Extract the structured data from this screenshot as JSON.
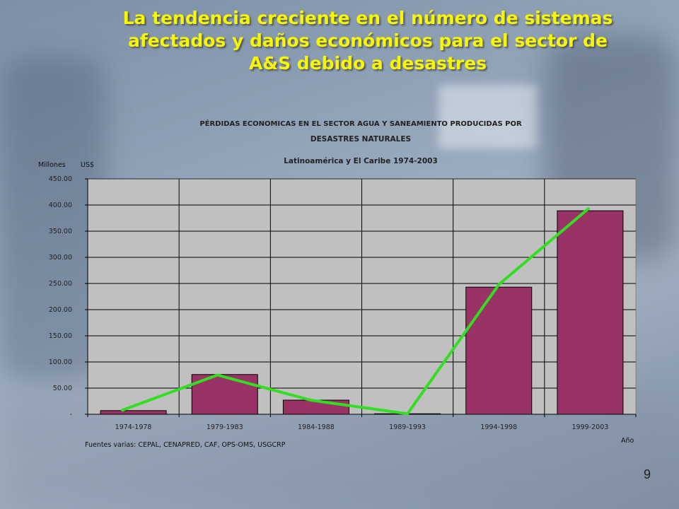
{
  "slide": {
    "title": "La tendencia creciente en el número de sistemas afectados y daños económicos para el sector de A&S debido a desastres",
    "page_number": "9"
  },
  "chart_data": {
    "type": "bar",
    "title_line1": "PÉRDIDAS ECONOMICAS EN EL SECTOR AGUA Y SANEAMIENTO PRODUCIDAS POR",
    "title_line2": "DESASTRES NATURALES",
    "subtitle": "Latinoamérica y El Caribe 1974-2003",
    "ylabel": "Millones",
    "yunit": "US$",
    "xlabel": "Año",
    "source": "Fuentes varias: CEPAL, CENAPRED, CAF, OPS-OMS, USGCRP",
    "categories": [
      "1974-1978",
      "1979-1983",
      "1984-1988",
      "1989-1993",
      "1994-1998",
      "1999-2003"
    ],
    "series": [
      {
        "values": [
          7,
          76,
          27,
          1,
          243,
          389
        ],
        "color": "#993366",
        "kind": "bar"
      },
      {
        "values": [
          8,
          75,
          27,
          1,
          248,
          393
        ],
        "color": "#33dd22",
        "kind": "line"
      }
    ],
    "ylim": [
      0,
      450
    ],
    "yticks": [
      0,
      50,
      100,
      150,
      200,
      250,
      300,
      350,
      400,
      450
    ],
    "ytick_labels": [
      "-",
      "50.00",
      "100.00",
      "150.00",
      "200.00",
      "250.00",
      "300.00",
      "350.00",
      "400.00",
      "450.00"
    ],
    "plot_background": "#c0c0c0",
    "grid": true,
    "legend": "none"
  }
}
